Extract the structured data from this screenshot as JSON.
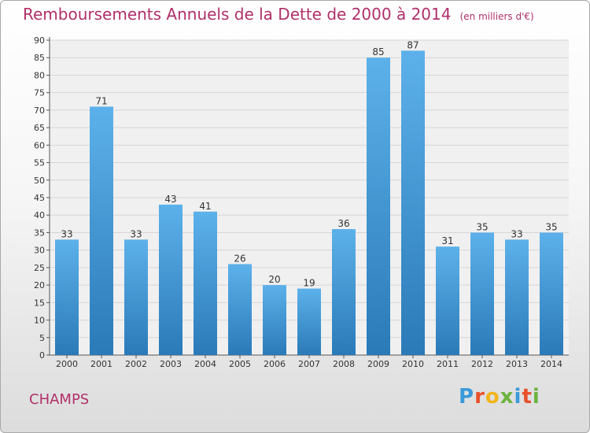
{
  "title": "Remboursements Annuels de la Dette de 2000 à 2014",
  "unit": "(en milliers d'€)",
  "commune": "CHAMPS",
  "logo": {
    "letters": [
      "P",
      "r",
      "o",
      "x",
      "i",
      "t",
      "i"
    ],
    "colors": [
      "#3a9ad9",
      "#e8502a",
      "#f2b51b",
      "#6cb33e",
      "#3a9ad9",
      "#e8502a",
      "#6cb33e"
    ]
  },
  "colors": {
    "bar_top": "#5db1ea",
    "bar_bottom": "#2a7ab8",
    "title": "#b0306a"
  },
  "chart_data": {
    "type": "bar",
    "title": "Remboursements Annuels de la Dette de 2000 à 2014",
    "xlabel": "",
    "ylabel": "",
    "categories": [
      "2000",
      "2001",
      "2002",
      "2003",
      "2004",
      "2005",
      "2006",
      "2007",
      "2008",
      "2009",
      "2010",
      "2011",
      "2012",
      "2013",
      "2014"
    ],
    "values": [
      33,
      71,
      33,
      43,
      41,
      26,
      20,
      19,
      36,
      85,
      87,
      31,
      35,
      33,
      35
    ],
    "ylim": [
      0,
      90
    ],
    "yticks": [
      0,
      5,
      10,
      15,
      20,
      25,
      30,
      35,
      40,
      45,
      50,
      55,
      60,
      65,
      70,
      75,
      80,
      85,
      90
    ],
    "grid": true,
    "legend": "none"
  }
}
